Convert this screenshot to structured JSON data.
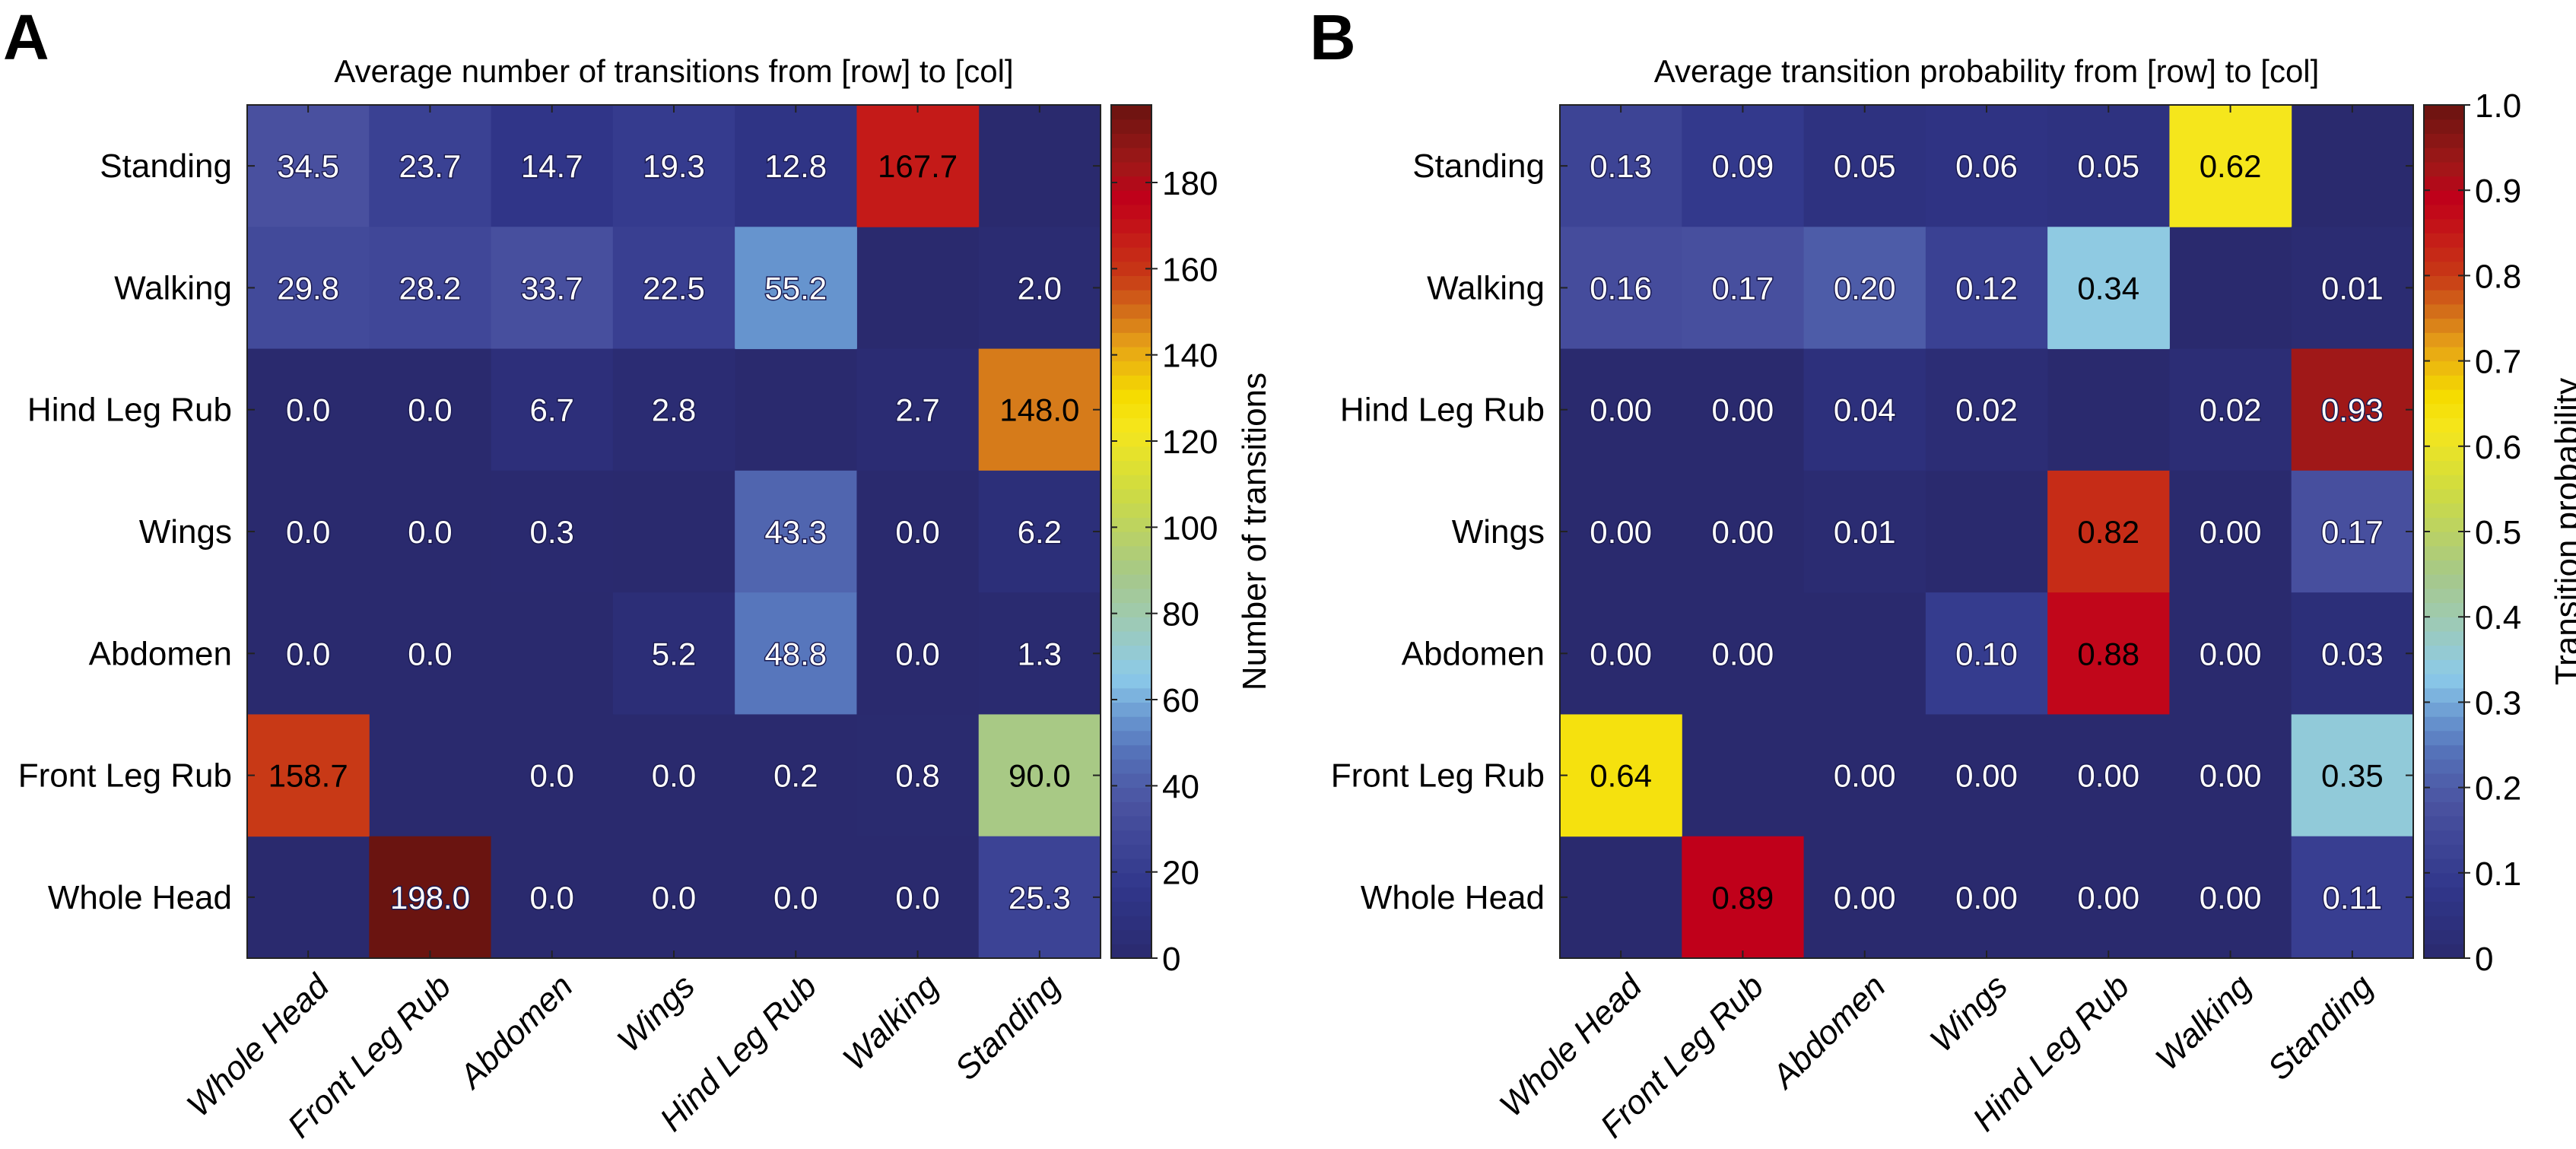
{
  "chart_data": [
    {
      "type": "heatmap",
      "panel_label": "A",
      "title": "Average number of transitions from [row] to [col]",
      "rows": [
        "Standing",
        "Walking",
        "Hind Leg Rub",
        "Wings",
        "Abdomen",
        "Front Leg Rub",
        "Whole Head"
      ],
      "columns": [
        "Whole Head",
        "Front Leg Rub",
        "Abdomen",
        "Wings",
        "Hind Leg Rub",
        "Walking",
        "Standing"
      ],
      "values": [
        [
          34.5,
          23.7,
          14.7,
          19.3,
          12.8,
          167.7,
          null
        ],
        [
          29.8,
          28.2,
          33.7,
          22.5,
          55.2,
          null,
          2.0
        ],
        [
          0.0,
          0.0,
          6.7,
          2.8,
          null,
          2.7,
          148.0
        ],
        [
          0.0,
          0.0,
          0.3,
          null,
          43.3,
          0.0,
          6.2
        ],
        [
          0.0,
          0.0,
          null,
          5.2,
          48.8,
          0.0,
          1.3
        ],
        [
          158.7,
          null,
          0.0,
          0.0,
          0.2,
          0.8,
          90.0
        ],
        [
          null,
          198.0,
          0.0,
          0.0,
          0.0,
          0.0,
          25.3
        ]
      ],
      "decimals": 1,
      "colorbar": {
        "label": "Number of transitions",
        "range": [
          0,
          198
        ],
        "ticks": [
          0,
          20,
          40,
          60,
          80,
          100,
          120,
          140,
          160,
          180
        ],
        "tick_labels": [
          "0",
          "20",
          "40",
          "60",
          "80",
          "100",
          "120",
          "140",
          "160",
          "180"
        ]
      }
    },
    {
      "type": "heatmap",
      "panel_label": "B",
      "title": "Average transition probability from [row] to [col]",
      "rows": [
        "Standing",
        "Walking",
        "Hind Leg Rub",
        "Wings",
        "Abdomen",
        "Front Leg Rub",
        "Whole Head"
      ],
      "columns": [
        "Whole Head",
        "Front Leg Rub",
        "Abdomen",
        "Wings",
        "Hind Leg Rub",
        "Walking",
        "Standing"
      ],
      "values": [
        [
          0.13,
          0.09,
          0.05,
          0.06,
          0.05,
          0.62,
          null
        ],
        [
          0.16,
          0.17,
          0.2,
          0.12,
          0.34,
          null,
          0.01
        ],
        [
          0.0,
          0.0,
          0.04,
          0.02,
          null,
          0.02,
          0.93
        ],
        [
          0.0,
          0.0,
          0.01,
          null,
          0.82,
          0.0,
          0.17
        ],
        [
          0.0,
          0.0,
          null,
          0.1,
          0.88,
          0.0,
          0.03
        ],
        [
          0.64,
          null,
          0.0,
          0.0,
          0.0,
          0.0,
          0.35
        ],
        [
          null,
          0.89,
          0.0,
          0.0,
          0.0,
          0.0,
          0.11
        ]
      ],
      "decimals": 2,
      "colorbar": {
        "label": "Transition probability",
        "range": [
          0,
          1
        ],
        "ticks": [
          0,
          0.1,
          0.2,
          0.3,
          0.4,
          0.5,
          0.6,
          0.7,
          0.8,
          0.9,
          1.0
        ],
        "tick_labels": [
          "0",
          "0.1",
          "0.2",
          "0.3",
          "0.4",
          "0.5",
          "0.6",
          "0.7",
          "0.8",
          "0.9",
          "1.0"
        ]
      }
    }
  ],
  "colormap": [
    [
      0.0,
      "#2a2a6e"
    ],
    [
      0.08,
      "#30368a"
    ],
    [
      0.18,
      "#4a52a0"
    ],
    [
      0.24,
      "#5470b8"
    ],
    [
      0.28,
      "#6795cf"
    ],
    [
      0.33,
      "#8ccaea"
    ],
    [
      0.4,
      "#9fcab0"
    ],
    [
      0.45,
      "#a6c888"
    ],
    [
      0.55,
      "#cfdc40"
    ],
    [
      0.62,
      "#f5e61c"
    ],
    [
      0.66,
      "#f5dc00"
    ],
    [
      0.72,
      "#e6a018"
    ],
    [
      0.75,
      "#d5781a"
    ],
    [
      0.8,
      "#c83a16"
    ],
    [
      0.85,
      "#c41818"
    ],
    [
      0.89,
      "#c0001a"
    ],
    [
      0.93,
      "#a01818"
    ],
    [
      1.0,
      "#6a1410"
    ]
  ],
  "text_colors": {
    "light": "#ffffff",
    "dark": "#000000",
    "outline": "#1a1a50"
  }
}
